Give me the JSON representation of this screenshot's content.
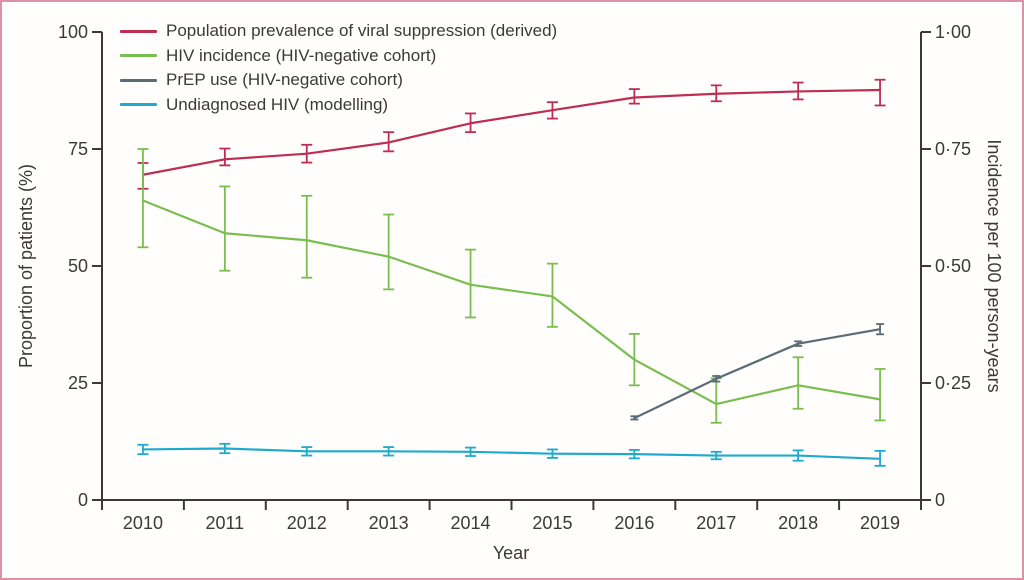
{
  "colors": {
    "border": "#db92a6",
    "background": "#fffefc",
    "axis": "#3a3a3a",
    "text": "#3a3a3a"
  },
  "chart_data": {
    "type": "line",
    "x": [
      2010,
      2011,
      2012,
      2013,
      2014,
      2015,
      2016,
      2017,
      2018,
      2019
    ],
    "xlabel": "Year",
    "ylabel_left": "Proportion of patients (%)",
    "ylabel_right": "Incidence per 100 person-years",
    "ylim_left": [
      0,
      100
    ],
    "ylim_right": [
      0,
      1.0
    ],
    "yticks_left": [
      "0",
      "25",
      "50",
      "75",
      "100"
    ],
    "yticks_left_values": [
      0,
      25,
      50,
      75,
      100
    ],
    "yticks_right": [
      "0",
      "0·25",
      "0·50",
      "0·75",
      "1·00"
    ],
    "yticks_right_values": [
      0,
      0.25,
      0.5,
      0.75,
      1.0
    ],
    "grid": false,
    "legend_position": "top-left-inside",
    "error_bars": true,
    "series": [
      {
        "id": "viral-suppression",
        "name": "Population prevalence of viral suppression (derived)",
        "axis": "left",
        "color": "#be2d54",
        "values": [
          69.5,
          72.8,
          74.0,
          76.4,
          80.5,
          83.3,
          86.0,
          86.8,
          87.3,
          87.6
        ],
        "ci_low": [
          66.5,
          71.5,
          72.1,
          74.5,
          78.6,
          81.5,
          84.7,
          85.2,
          85.6,
          84.3
        ],
        "ci_high": [
          72.0,
          75.1,
          75.9,
          78.6,
          82.6,
          85.0,
          87.8,
          88.6,
          89.2,
          89.8
        ]
      },
      {
        "id": "hiv-incidence",
        "name": "HIV incidence (HIV-negative cohort)",
        "axis": "right",
        "color": "#7abe50",
        "values": [
          0.64,
          0.57,
          0.555,
          0.52,
          0.46,
          0.435,
          0.3,
          0.205,
          0.245,
          0.215
        ],
        "ci_low": [
          0.54,
          0.49,
          0.475,
          0.45,
          0.39,
          0.37,
          0.245,
          0.165,
          0.195,
          0.17
        ],
        "ci_high": [
          0.75,
          0.67,
          0.65,
          0.61,
          0.535,
          0.505,
          0.355,
          0.26,
          0.305,
          0.28
        ]
      },
      {
        "id": "prep-use",
        "name": "PrEP use (HIV-negative cohort)",
        "axis": "left",
        "color": "#5a6b75",
        "values": [
          null,
          null,
          null,
          null,
          null,
          null,
          17.5,
          25.9,
          33.4,
          36.5
        ],
        "ci_low": [
          null,
          null,
          null,
          null,
          null,
          null,
          17.2,
          25.3,
          32.9,
          35.4
        ],
        "ci_high": [
          null,
          null,
          null,
          null,
          null,
          null,
          17.9,
          26.5,
          33.9,
          37.6
        ]
      },
      {
        "id": "undiagnosed-hiv",
        "name": "Undiagnosed HIV (modelling)",
        "axis": "left",
        "color": "#1eaacd",
        "values": [
          10.8,
          11.0,
          10.4,
          10.4,
          10.3,
          9.9,
          9.8,
          9.5,
          9.5,
          8.8
        ],
        "ci_low": [
          9.8,
          10.0,
          9.5,
          9.5,
          9.4,
          9.0,
          8.9,
          8.7,
          8.4,
          7.3
        ],
        "ci_high": [
          11.8,
          12.0,
          11.3,
          11.3,
          11.2,
          10.8,
          10.7,
          10.3,
          10.6,
          10.5
        ]
      }
    ]
  }
}
